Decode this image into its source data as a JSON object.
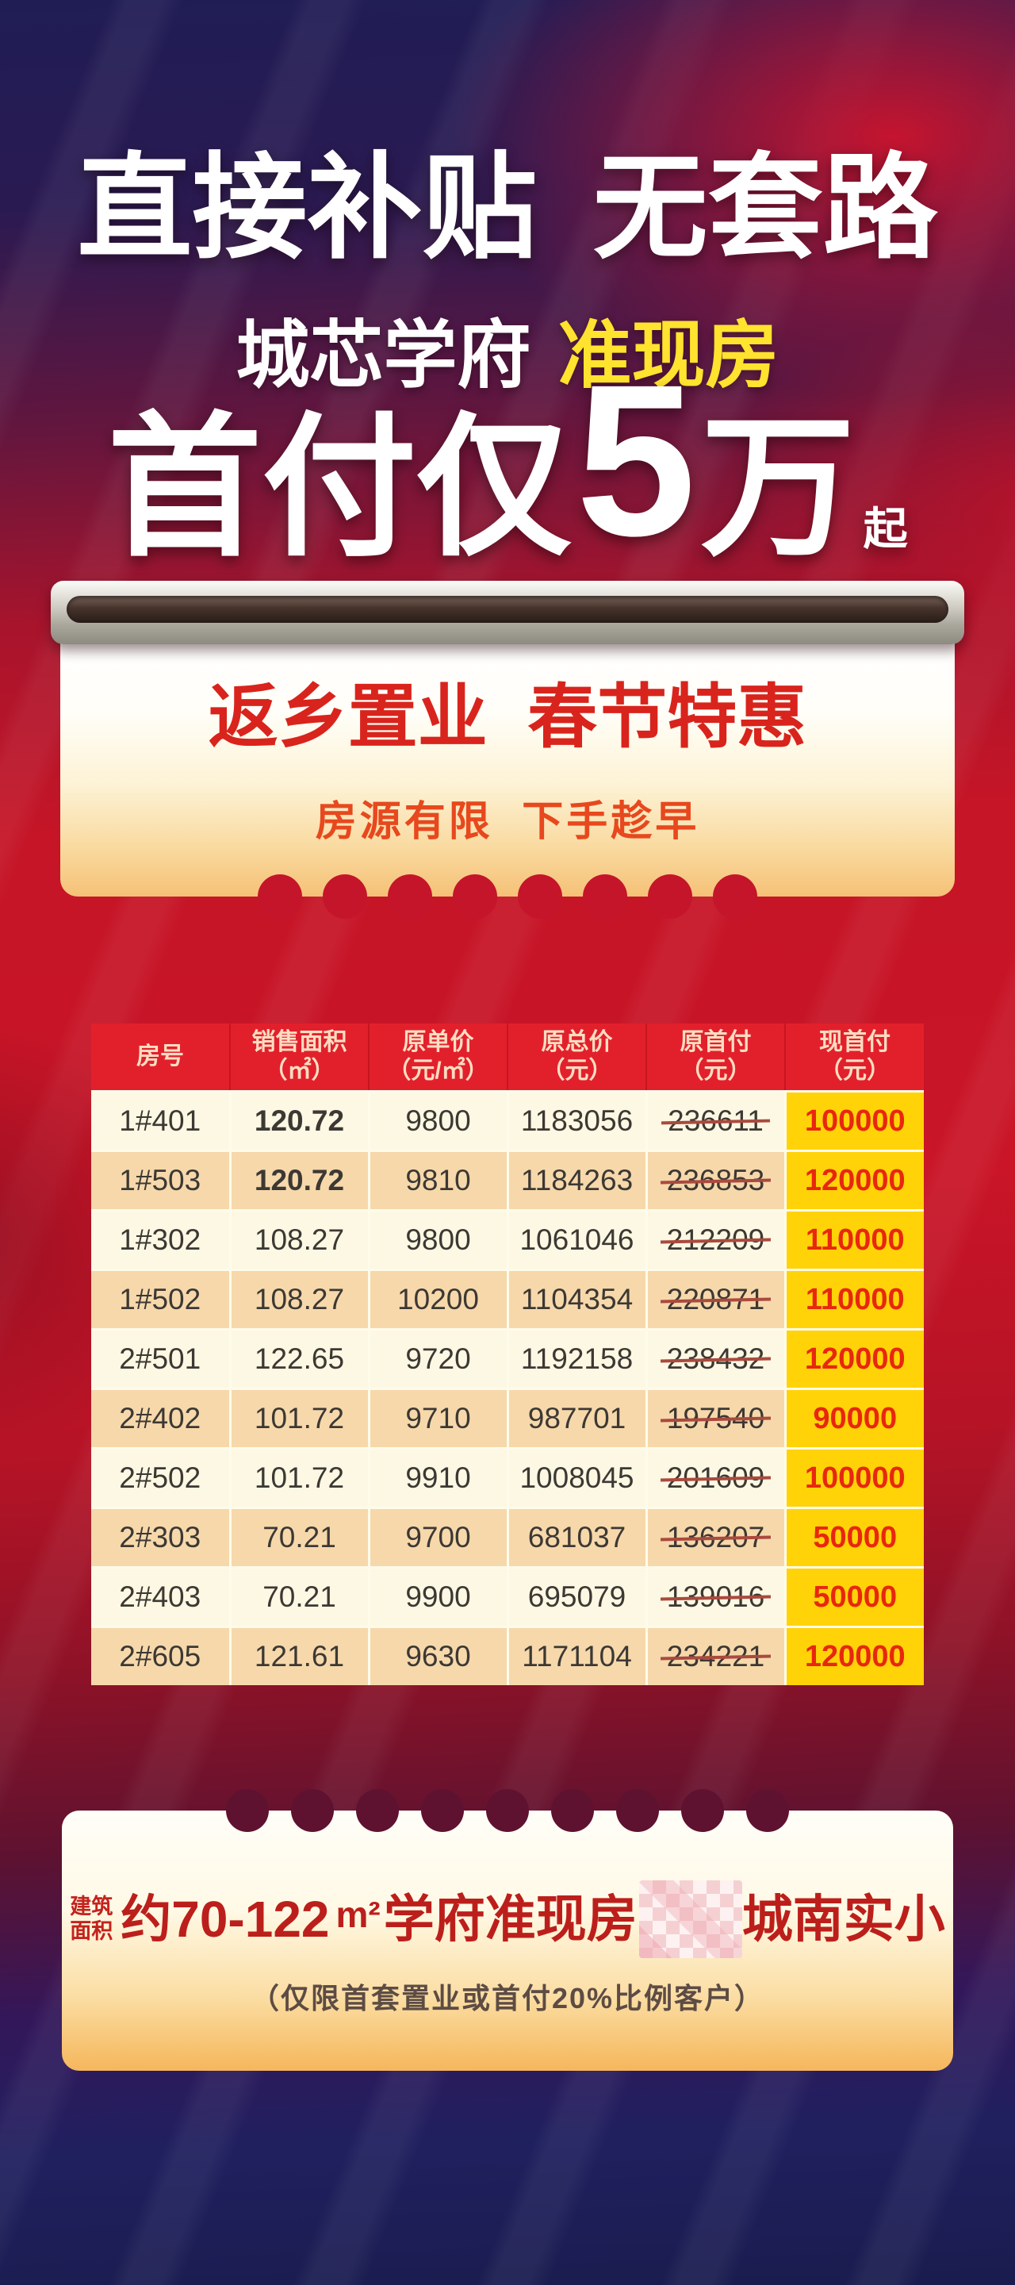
{
  "hero": {
    "headline": "直接补贴 无套路",
    "project": "城芯学府",
    "highlight": "准现房",
    "pay_prefix": "首付仅",
    "pay_amount": "5",
    "pay_unit": "万",
    "pay_suffix": "起"
  },
  "banner": {
    "title": "返乡置业 春节特惠",
    "subtitle": "房源有限 下手趁早"
  },
  "table": {
    "headers": [
      {
        "line1": "房号",
        "line2": ""
      },
      {
        "line1": "销售面积",
        "line2": "（㎡）"
      },
      {
        "line1": "原单价",
        "line2": "（元/㎡）"
      },
      {
        "line1": "原总价",
        "line2": "（元）"
      },
      {
        "line1": "原首付",
        "line2": "（元）"
      },
      {
        "line1": "现首付",
        "line2": "（元）"
      }
    ],
    "rows": [
      {
        "room": "1#401",
        "area": "120.72",
        "unit": "9800",
        "total": "1183056",
        "orig": "236611",
        "now": "100000"
      },
      {
        "room": "1#503",
        "area": "120.72",
        "unit": "9810",
        "total": "1184263",
        "orig": "236853",
        "now": "120000"
      },
      {
        "room": "1#302",
        "area": "108.27",
        "unit": "9800",
        "total": "1061046",
        "orig": "212209",
        "now": "110000"
      },
      {
        "room": "1#502",
        "area": "108.27",
        "unit": "10200",
        "total": "1104354",
        "orig": "220871",
        "now": "110000"
      },
      {
        "room": "2#501",
        "area": "122.65",
        "unit": "9720",
        "total": "1192158",
        "orig": "238432",
        "now": "120000"
      },
      {
        "room": "2#402",
        "area": "101.72",
        "unit": "9710",
        "total": "987701",
        "orig": "197540",
        "now": "90000"
      },
      {
        "room": "2#502",
        "area": "101.72",
        "unit": "9910",
        "total": "1008045",
        "orig": "201609",
        "now": "100000"
      },
      {
        "room": "2#303",
        "area": "70.21",
        "unit": "9700",
        "total": "681037",
        "orig": "136207",
        "now": "50000"
      },
      {
        "room": "2#403",
        "area": "70.21",
        "unit": "9900",
        "total": "695079",
        "orig": "139016",
        "now": "50000"
      },
      {
        "room": "2#605",
        "area": "121.61",
        "unit": "9630",
        "total": "1171104",
        "orig": "234221",
        "now": "120000"
      }
    ]
  },
  "footer": {
    "label_line1": "建筑",
    "label_line2": "面积",
    "area_range": "约70-122",
    "sqm": "m²",
    "text_before": "学府准现房",
    "text_after": "城南实小",
    "note": "（仅限首套置业或首付20%比例客户）"
  },
  "colors": {
    "background_navy": "#201d55",
    "background_red": "#c51527",
    "headline_white": "#ffffff",
    "highlight_yellow": "#ffe32e",
    "banner_red": "#d8241c",
    "banner_orange_red": "#e7481e",
    "table_header_red": "#e2202c",
    "table_header_text": "#ffddc2",
    "row_cream": "#fcf8e3",
    "row_peach": "#f6d8ab",
    "now_cell_gold": "#ffd307",
    "now_cell_text_red": "#e8270e",
    "strike_line": "#aa4a3e",
    "footer_red": "#bc1f1b",
    "footer_note_gray": "#5d4c44"
  }
}
